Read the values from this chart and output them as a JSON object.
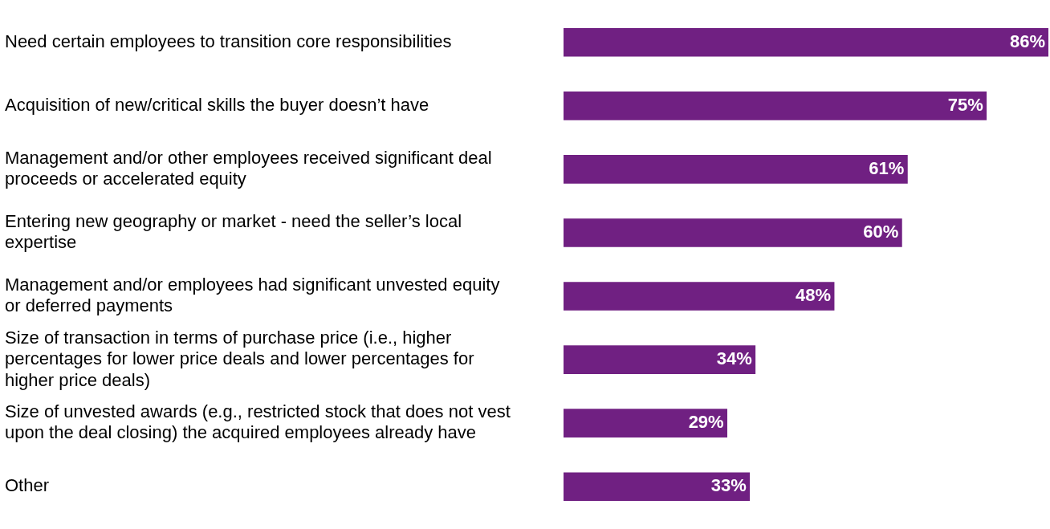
{
  "chart_data": {
    "type": "bar",
    "orientation": "horizontal",
    "categories": [
      "Need certain employees to transition core responsibilities",
      "Acquisition of new/critical skills the buyer doesn’t have",
      "Management and/or other employees received significant deal proceeds or accelerated equity",
      "Entering new geography or market - need the seller’s local expertise",
      "Management and/or employees had significant unvested equity or deferred payments",
      "Size of transaction in terms of purchase price (i.e., higher percentages for lower price deals and lower percentages for higher price deals)",
      "Size of unvested awards (e.g., restricted stock that does not vest upon the deal closing) the acquired employees already have",
      "Other"
    ],
    "values": [
      86,
      75,
      61,
      60,
      48,
      34,
      29,
      33
    ],
    "value_labels": [
      "86%",
      "75%",
      "61%",
      "60%",
      "48%",
      "34%",
      "29%",
      "33%"
    ],
    "color": "#702082",
    "legend": false
  }
}
